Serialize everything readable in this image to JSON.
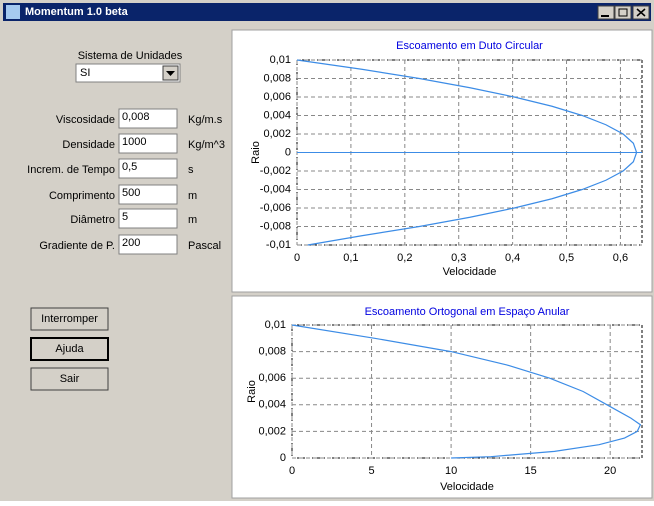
{
  "window": {
    "title": "Momentum 1.0 beta"
  },
  "form": {
    "units_label": "Sistema de Unidades",
    "units_value": "SI",
    "fields": [
      {
        "label": "Viscosidade",
        "value": "0,008",
        "unit": "Kg/m.s"
      },
      {
        "label": "Densidade",
        "value": "1000",
        "unit": "Kg/m^3"
      },
      {
        "label": "Increm. de Tempo",
        "value": "0,5",
        "unit": "s"
      },
      {
        "label": "Comprimento",
        "value": "500",
        "unit": "m"
      },
      {
        "label": "Diâmetro",
        "value": "5",
        "unit": "m"
      },
      {
        "label": "Gradiente de P.",
        "value": "200",
        "unit": "Pascal"
      }
    ],
    "buttons": [
      "Interromper",
      "Ajuda",
      "Sair"
    ]
  },
  "chart_data": [
    {
      "type": "line",
      "title": "Escoamento em Duto Circular",
      "x_label": "Velocidade",
      "y_label": "Raio",
      "grid": true,
      "x": [
        0,
        0.12,
        0.227,
        0.321,
        0.403,
        0.473,
        0.529,
        0.573,
        0.605,
        0.624,
        0.63,
        0.624,
        0.605,
        0.573,
        0.529,
        0.473,
        0.403,
        0.321,
        0.227,
        0.12,
        0.02
      ],
      "series": [
        {
          "color": "#3c8ce6",
          "values": [
            0.01,
            0.009,
            0.008,
            0.007,
            0.006,
            0.005,
            0.004,
            0.003,
            0.002,
            0.001,
            0,
            -0.001,
            -0.002,
            -0.003,
            -0.004,
            -0.005,
            -0.006,
            -0.007,
            -0.008,
            -0.009,
            -0.01
          ]
        }
      ],
      "xlim": [
        0,
        0.64
      ],
      "xticks": [
        0,
        {
          "value": 0.1,
          "label": "0,1"
        },
        {
          "value": 0.2,
          "label": "0,2"
        },
        {
          "value": 0.3,
          "label": "0,3"
        },
        {
          "value": 0.4,
          "label": "0,4"
        },
        {
          "value": 0.5,
          "label": "0,5"
        },
        {
          "value": 0.6,
          "label": "0,6"
        }
      ],
      "ylim": [
        -0.01,
        0.01
      ],
      "yticks": [
        {
          "value": 0.01,
          "label": "0,01"
        },
        {
          "value": 0.008,
          "label": "0,008"
        },
        {
          "value": 0.006,
          "label": "0,006"
        },
        {
          "value": 0.004,
          "label": "0,004"
        },
        {
          "value": 0.002,
          "label": "0,002"
        },
        0,
        {
          "value": -0.002,
          "label": "-0,002"
        },
        {
          "value": -0.004,
          "label": "-0,004"
        },
        {
          "value": -0.006,
          "label": "-0,006"
        },
        {
          "value": -0.008,
          "label": "-0,008"
        },
        {
          "value": -0.01,
          "label": "-0,01"
        }
      ]
    },
    {
      "type": "line",
      "title": "Escoamento Ortogonal em Espaço Anular",
      "x_label": "Velocidade",
      "y_label": "Raio",
      "grid": true,
      "x": [
        0,
        5.2,
        10,
        13.5,
        16.2,
        18.3,
        19.8,
        21.3,
        21.9,
        21.7,
        20.9,
        19.3,
        16.5,
        12.5,
        10
      ],
      "series": [
        {
          "color": "#3c8ce6",
          "values": [
            0.01,
            0.009,
            0.008,
            0.007,
            0.006,
            0.005,
            0.004,
            0.003,
            0.0025,
            0.002,
            0.0015,
            0.001,
            0.0005,
            0.0001,
            0
          ]
        }
      ],
      "xlim": [
        0,
        22
      ],
      "xticks": [
        0,
        5,
        10,
        15,
        20
      ],
      "ylim": [
        0,
        0.01
      ],
      "yticks": [
        {
          "value": 0.01,
          "label": "0,01"
        },
        {
          "value": 0.008,
          "label": "0,008"
        },
        {
          "value": 0.006,
          "label": "0,006"
        },
        {
          "value": 0.004,
          "label": "0,004"
        },
        {
          "value": 0.002,
          "label": "0,002"
        },
        0
      ]
    }
  ]
}
